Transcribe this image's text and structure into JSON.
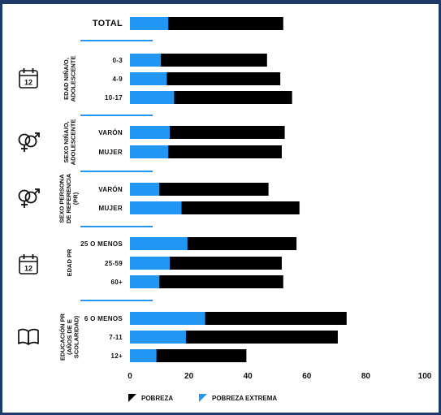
{
  "chart_data": {
    "type": "bar",
    "orientation": "horizontal",
    "stacked": "overlay",
    "xlim": [
      0,
      100
    ],
    "xticks": [
      0,
      20,
      40,
      60,
      80,
      100
    ],
    "grid": false,
    "legend_position": "bottom",
    "colors": {
      "pobreza": "#000000",
      "pobreza_extrema": "#2196f3"
    },
    "series": [
      {
        "name": "POBREZA",
        "color": "#000000"
      },
      {
        "name": "POBREZA EXTREMA",
        "color": "#2196f3"
      }
    ],
    "groups": [
      {
        "label": "",
        "icon": "",
        "rows": [
          {
            "label": "TOTAL",
            "pobreza": 52,
            "extrema": 13
          }
        ]
      },
      {
        "label": "EDAD NIÑA/O, ADOLESCENTE",
        "icon": "calendar-icon",
        "rows": [
          {
            "label": "0-3",
            "pobreza": 46.5,
            "extrema": 10.5
          },
          {
            "label": "4-9",
            "pobreza": 51,
            "extrema": 12.5
          },
          {
            "label": "10-17",
            "pobreza": 55,
            "extrema": 15
          }
        ]
      },
      {
        "label": "SEXO NIÑA/O, ADOLESCENTE",
        "icon": "gender-icon",
        "rows": [
          {
            "label": "VARÓN",
            "pobreza": 52.5,
            "extrema": 13.5
          },
          {
            "label": "MUJER",
            "pobreza": 51.5,
            "extrema": 13
          }
        ]
      },
      {
        "label": "SEXO PERSONA DE REFERENCIA (PR)",
        "icon": "gender-icon",
        "rows": [
          {
            "label": "VARÓN",
            "pobreza": 47,
            "extrema": 10
          },
          {
            "label": "MUJER",
            "pobreza": 57.5,
            "extrema": 17.5
          }
        ]
      },
      {
        "label": "EDAD PR",
        "icon": "calendar-icon",
        "rows": [
          {
            "label": "25 O MENOS",
            "pobreza": 56.5,
            "extrema": 19.5
          },
          {
            "label": "25-59",
            "pobreza": 51.5,
            "extrema": 13.5
          },
          {
            "label": "60+",
            "pobreza": 52,
            "extrema": 10
          }
        ]
      },
      {
        "label": "EDUCACIÓN PR (AÑOS DE E SCOLARIDAD)",
        "icon": "book-icon",
        "rows": [
          {
            "label": "6 O MENOS",
            "pobreza": 73.5,
            "extrema": 25.5
          },
          {
            "label": "7-11",
            "pobreza": 70.5,
            "extrema": 19
          },
          {
            "label": "12+",
            "pobreza": 39.5,
            "extrema": 9
          }
        ]
      }
    ],
    "group_label_lines": [
      [],
      [
        "EDAD NIÑA/O,",
        "ADOLESCENTE"
      ],
      [
        "SEXO NIÑA/O,",
        "ADOLESCENTE"
      ],
      [
        "SEXO PERSONA",
        "DE REFERENCIA",
        "(PR)"
      ],
      [
        "EDAD PR"
      ],
      [
        "EDUCACIÓN PR",
        "(AÑOS DE E",
        "SCOLARIDAD)"
      ]
    ],
    "calendar_day": "12",
    "title": "",
    "xlabel": "",
    "ylabel": ""
  }
}
